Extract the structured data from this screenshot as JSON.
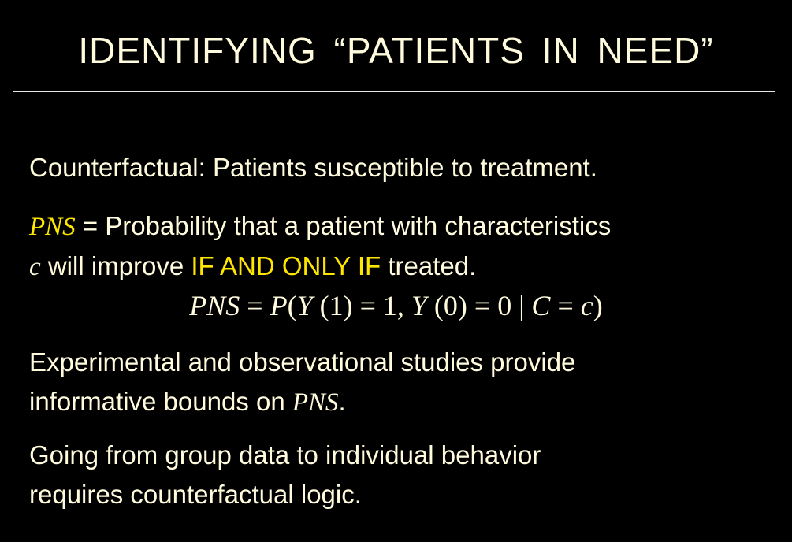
{
  "slide": {
    "title": "IDENTIFYING “PATIENTS IN NEED”",
    "bullet1": "Counterfactual: Patients susceptible to treatment.",
    "bullet2": {
      "term": "PNS",
      "line1_rest": " = Probability that a patient with characteristics",
      "var_c": "c",
      "line2_mid": " will improve ",
      "highlight": "IF AND ONLY IF",
      "line2_end": " treated."
    },
    "formula": {
      "lhs": "PNS",
      "eq1": " = ",
      "p": "P",
      "open": "(",
      "y1": "Y",
      "arg1": " (1) = 1, ",
      "y0": "Y",
      "arg0": " (0) = 0 | ",
      "cap_c": "C",
      "eq2": " = ",
      "low_c": "c",
      "close": ")"
    },
    "bullet3": {
      "line1": "Experimental and observational studies provide",
      "line2_pre": "informative bounds on ",
      "term": "PNS",
      "line2_end": "."
    },
    "bullet4": {
      "line1": "Going from group data to individual behavior",
      "line2": "requires counterfactual logic."
    },
    "colors": {
      "background": "#000000",
      "text": "#fffbdc",
      "highlight": "#ffe600",
      "rule": "#e8e8e8"
    }
  }
}
